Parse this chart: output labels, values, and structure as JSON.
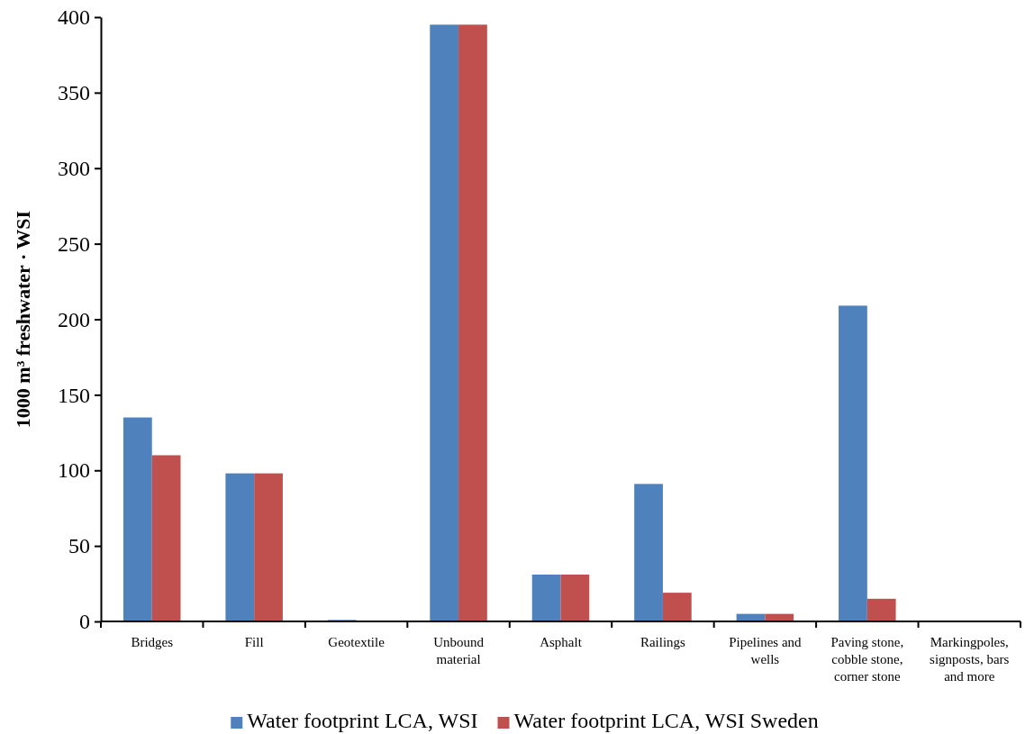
{
  "chart_data": {
    "type": "bar",
    "ylabel": "1000 m³ freshwater · WSI",
    "categories": [
      "Bridges",
      "Fill",
      "Geotextile",
      "Unbound material",
      "Asphalt",
      "Railings",
      "Pipelines and wells",
      "Paving stone, cobble stone, corner stone",
      "Markingpoles, signposts, bars and more"
    ],
    "series": [
      {
        "name": "Water footprint LCA, WSI",
        "color": "#4f81bd",
        "values": [
          135,
          98,
          1,
          395,
          31,
          91,
          5,
          209,
          0
        ]
      },
      {
        "name": "Water footprint LCA, WSI Sweden",
        "color": "#c0504d",
        "values": [
          110,
          98,
          0,
          395,
          31,
          19,
          5,
          15,
          0
        ]
      }
    ],
    "ylim": [
      0,
      400
    ],
    "yticks": [
      0,
      50,
      100,
      150,
      200,
      250,
      300,
      350,
      400
    ],
    "grid": false,
    "legend": "bottom"
  }
}
